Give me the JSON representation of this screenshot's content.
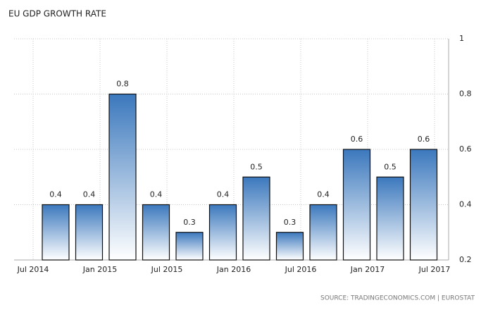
{
  "chart_data": {
    "type": "bar",
    "title": "EU GDP GROWTH RATE",
    "categories": [
      null,
      null,
      null,
      null,
      null,
      null,
      null,
      null,
      null,
      null,
      null,
      null
    ],
    "values": [
      0.4,
      0.4,
      0.8,
      0.4,
      0.3,
      0.4,
      0.5,
      0.3,
      0.4,
      0.6,
      0.5,
      0.6
    ],
    "xtick_labels": [
      "Jul 2014",
      "Jan 2015",
      "Jul 2015",
      "Jan 2016",
      "Jul 2016",
      "Jan 2017",
      "Jul 2017"
    ],
    "color": "#3b78bd",
    "ylim": [
      0.2,
      1
    ],
    "yticks": [
      0.2,
      0.4,
      0.6,
      0.8,
      1
    ],
    "grid": true,
    "source": "SOURCE: TRADINGECONOMICS.COM | EUROSTAT"
  }
}
